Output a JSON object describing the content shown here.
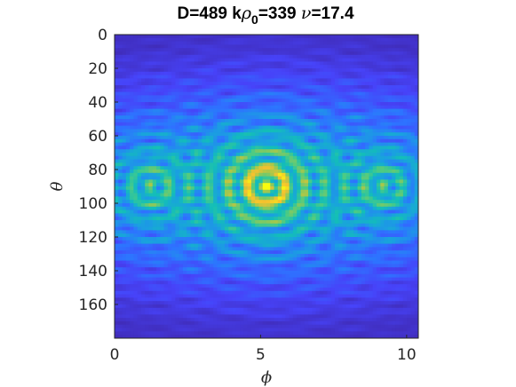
{
  "chart_data": {
    "type": "heatmap",
    "title": {
      "part1": "D=489 k",
      "rho": "ρ",
      "sub": "0",
      "part2": "=339 ",
      "nu": "ν",
      "part3": "=17.4"
    },
    "xlabel": "ϕ",
    "ylabel": "θ",
    "xlim": [
      0,
      10.4
    ],
    "ylim": [
      0,
      180
    ],
    "y_reversed": true,
    "x_ticks": [
      0,
      5,
      10
    ],
    "x_tick_labels": [
      "0",
      "5",
      "10"
    ],
    "y_ticks": [
      0,
      20,
      40,
      60,
      80,
      100,
      120,
      140,
      160
    ],
    "y_tick_labels": [
      "0",
      "20",
      "40",
      "60",
      "80",
      "100",
      "120",
      "140",
      "160"
    ],
    "colormap": "parula",
    "colormap_stops": [
      "#3e26a8",
      "#4743f9",
      "#2d74ff",
      "#1aa0e0",
      "#13beb8",
      "#4bcb85",
      "#a8c74a",
      "#f5c12f",
      "#f9fb0e"
    ],
    "peaks": [
      {
        "phi": 5.2,
        "theta": 90,
        "intensity": 1.0
      },
      {
        "phi": 1.2,
        "theta": 90,
        "intensity": 0.55
      },
      {
        "phi": 9.2,
        "theta": 90,
        "intensity": 0.55
      }
    ],
    "grid": false,
    "legend": "none"
  }
}
